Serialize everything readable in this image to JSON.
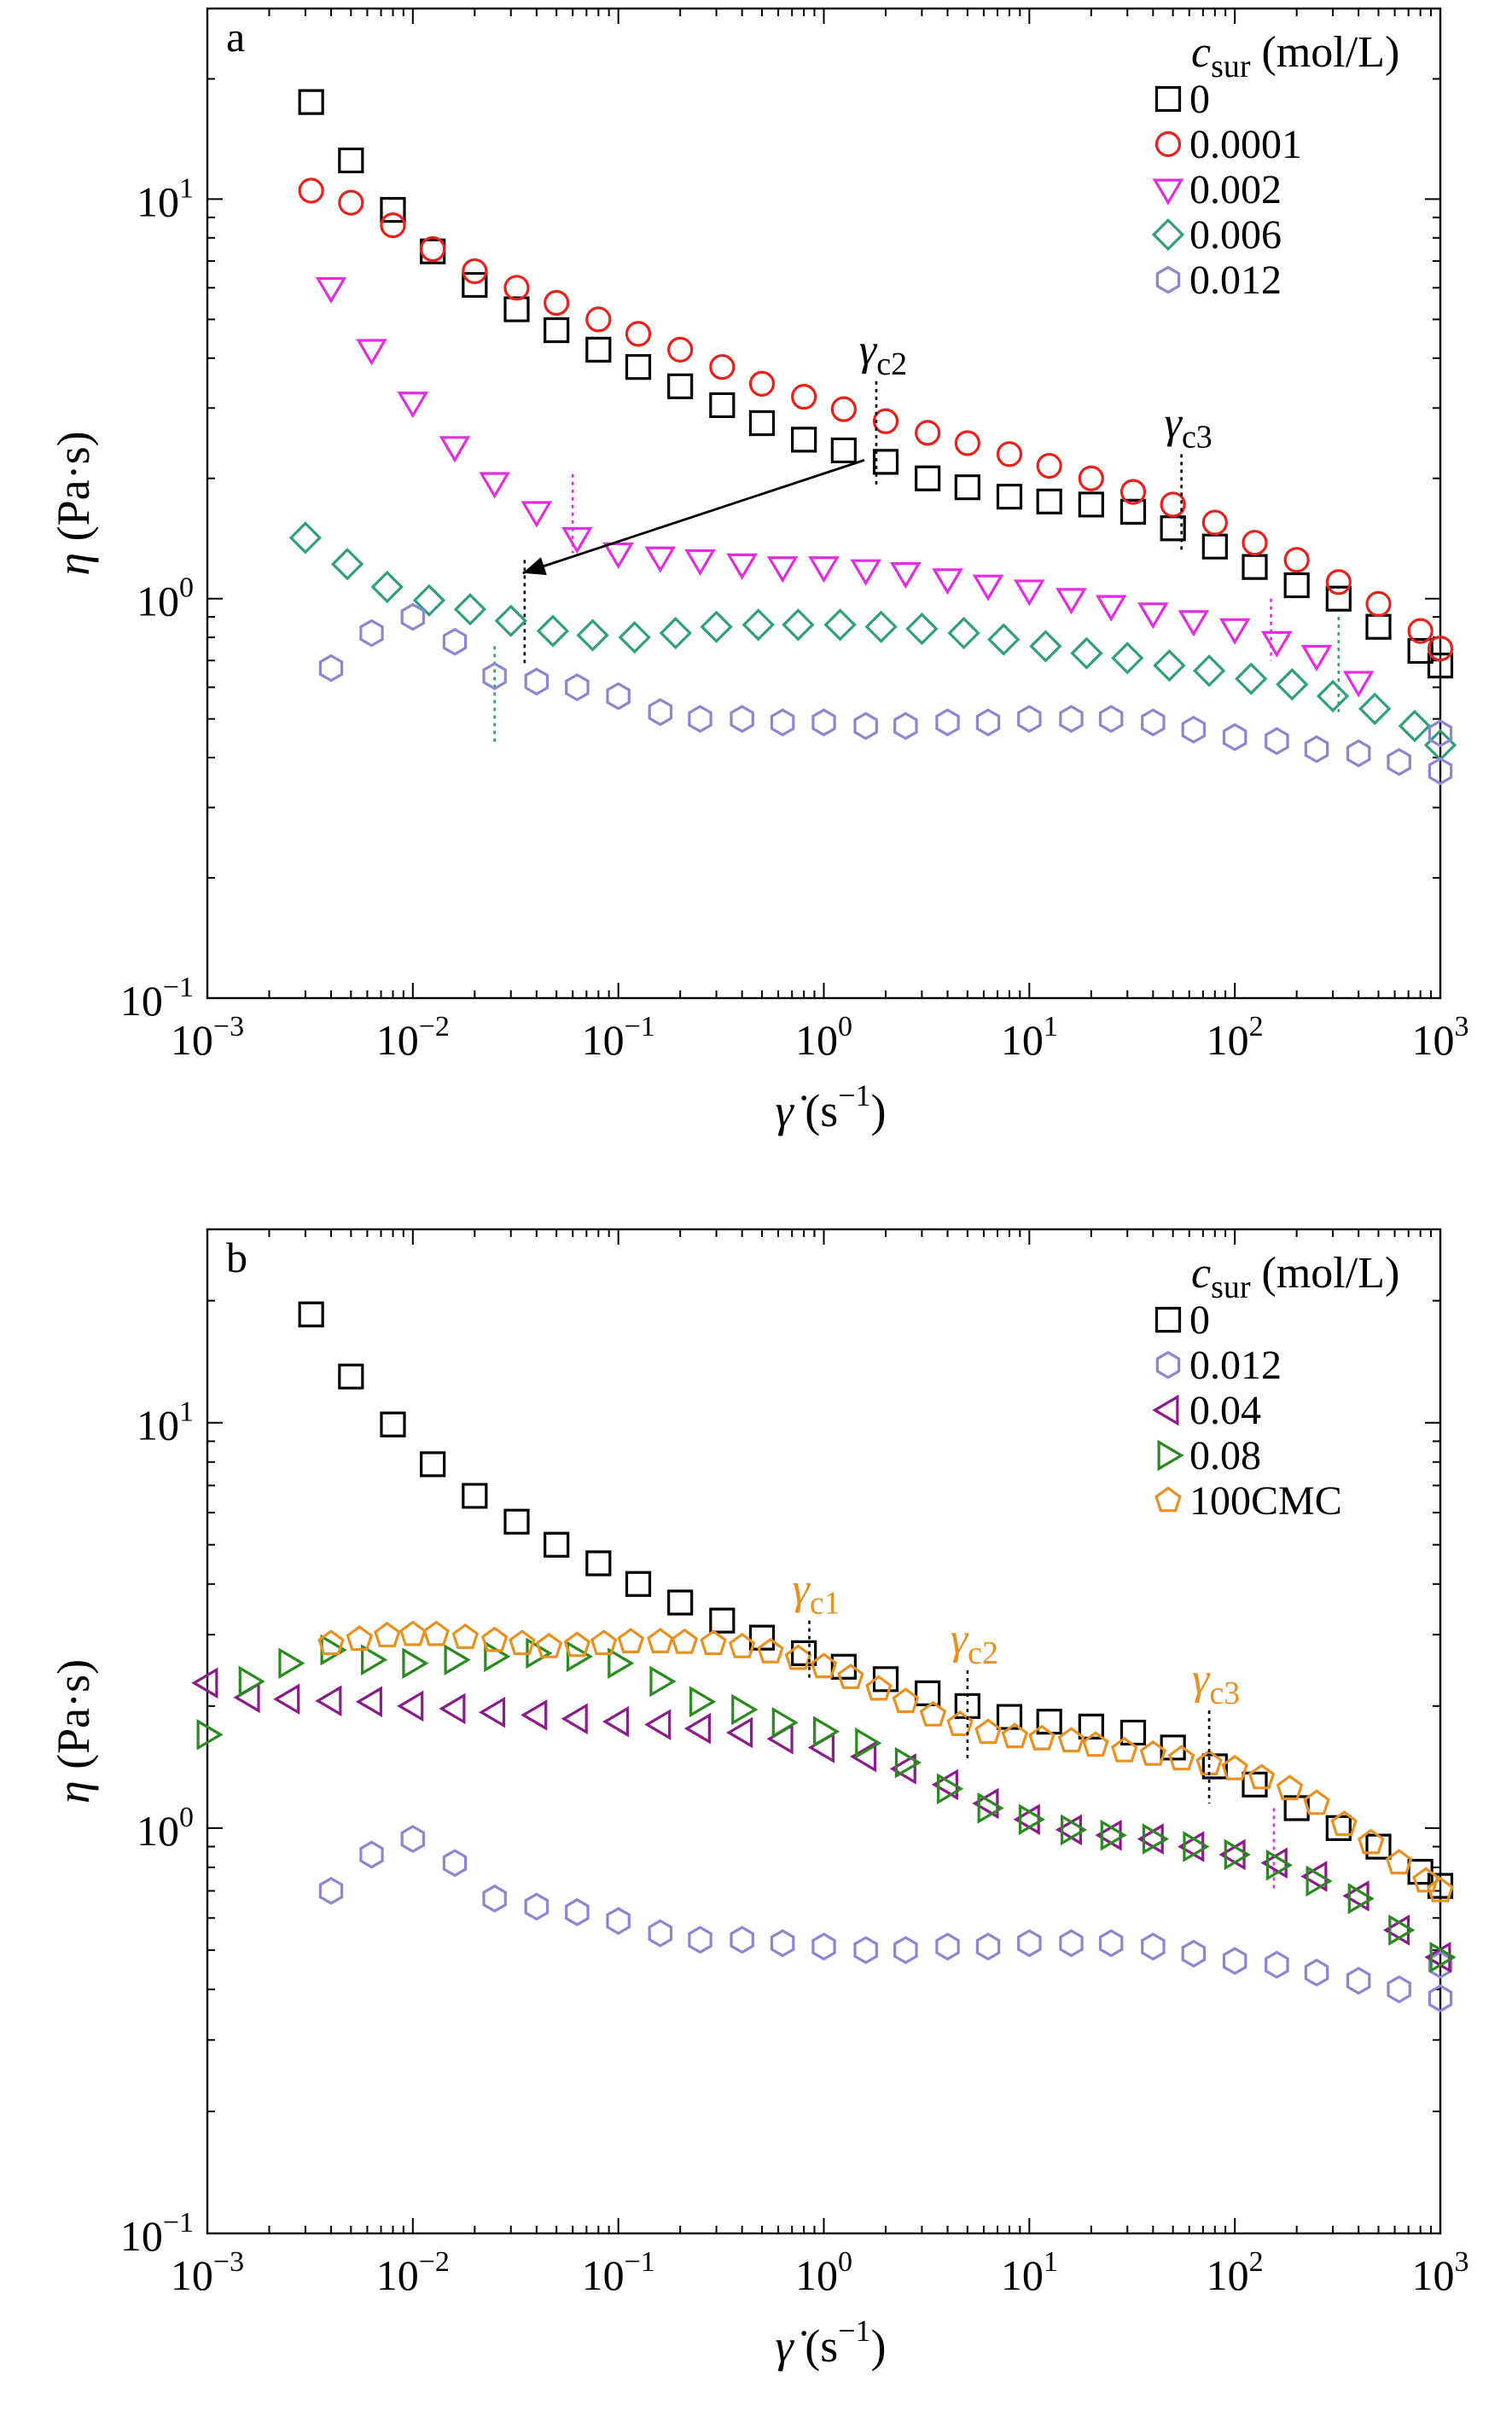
{
  "chart_data": [
    {
      "type": "scatter",
      "panel_label": "a",
      "xscale": "log",
      "yscale": "log",
      "xlim": [
        0.001,
        1000
      ],
      "ylim": [
        0.1,
        30
      ],
      "xticks": [
        0.001,
        0.01,
        0.1,
        1,
        10,
        100,
        1000
      ],
      "yticks": [
        0.1,
        1,
        10
      ],
      "xtick_labels": [
        {
          "base": "10",
          "exp": "−3"
        },
        {
          "base": "10",
          "exp": "−2"
        },
        {
          "base": "10",
          "exp": "−1"
        },
        {
          "base": "10",
          "exp": "0"
        },
        {
          "base": "10",
          "exp": "1"
        },
        {
          "base": "10",
          "exp": "2"
        },
        {
          "base": "10",
          "exp": "3"
        }
      ],
      "ytick_labels": [
        {
          "base": "10",
          "exp": "−1"
        },
        {
          "base": "10",
          "exp": "0"
        },
        {
          "base": "10",
          "exp": "1"
        }
      ],
      "xlabel": {
        "sym": "γ̇",
        "text": " (s",
        "exp": "−1",
        "close": ")"
      },
      "ylabel": {
        "sym": "η",
        "text": " (Pa·s)"
      },
      "legend": {
        "title_sym": "c",
        "title_sub": "sur",
        "title_text": " (mol/L)",
        "position": "top-right"
      },
      "series": [
        {
          "name": "0",
          "marker": "square",
          "color": "#000000",
          "x": [
            0.0032,
            0.005,
            0.008,
            0.0125,
            0.02,
            0.032,
            0.05,
            0.08,
            0.125,
            0.2,
            0.32,
            0.5,
            0.8,
            1.25,
            2,
            3.2,
            5,
            8,
            12.5,
            20,
            32,
            50,
            80,
            125,
            200,
            320,
            500,
            800,
            1000
          ],
          "y": [
            17.5,
            12.5,
            9.4,
            7.4,
            6.1,
            5.3,
            4.7,
            4.2,
            3.8,
            3.4,
            3.05,
            2.75,
            2.5,
            2.35,
            2.2,
            2.0,
            1.9,
            1.8,
            1.75,
            1.72,
            1.65,
            1.5,
            1.35,
            1.2,
            1.08,
            1.0,
            0.85,
            0.74,
            0.68
          ]
        },
        {
          "name": "0.0001",
          "marker": "circle",
          "color": "#e8211d",
          "x": [
            0.0032,
            0.005,
            0.008,
            0.0125,
            0.02,
            0.032,
            0.05,
            0.08,
            0.125,
            0.2,
            0.32,
            0.5,
            0.8,
            1.25,
            2,
            3.2,
            5,
            8,
            12.5,
            20,
            32,
            50,
            80,
            125,
            200,
            320,
            500,
            800,
            1000
          ],
          "y": [
            10.5,
            9.8,
            8.6,
            7.5,
            6.6,
            6.0,
            5.5,
            5.0,
            4.6,
            4.2,
            3.8,
            3.45,
            3.2,
            2.98,
            2.78,
            2.6,
            2.45,
            2.3,
            2.15,
            2.0,
            1.85,
            1.72,
            1.55,
            1.38,
            1.25,
            1.1,
            0.97,
            0.83,
            0.75
          ]
        },
        {
          "name": "0.002",
          "marker": "triangle-down",
          "color": "#e22ee0",
          "x": [
            0.004,
            0.0063,
            0.01,
            0.016,
            0.025,
            0.04,
            0.063,
            0.1,
            0.16,
            0.25,
            0.4,
            0.63,
            1,
            1.6,
            2.5,
            4,
            6.3,
            10,
            16,
            25,
            40,
            63,
            100,
            160,
            250,
            400
          ],
          "y": [
            6.0,
            4.2,
            3.1,
            2.4,
            1.95,
            1.65,
            1.42,
            1.3,
            1.27,
            1.25,
            1.22,
            1.2,
            1.2,
            1.18,
            1.16,
            1.12,
            1.08,
            1.05,
            1.0,
            0.96,
            0.92,
            0.88,
            0.84,
            0.78,
            0.72,
            0.62
          ]
        },
        {
          "name": "0.006",
          "marker": "diamond",
          "color": "#2f9f7c",
          "x": [
            0.003,
            0.0048,
            0.0075,
            0.012,
            0.019,
            0.03,
            0.048,
            0.075,
            0.12,
            0.19,
            0.3,
            0.48,
            0.75,
            1.2,
            1.9,
            3,
            4.8,
            7.5,
            12,
            19,
            30,
            48,
            75,
            120,
            190,
            300,
            480,
            750,
            1000
          ],
          "y": [
            1.42,
            1.22,
            1.07,
            0.99,
            0.94,
            0.88,
            0.83,
            0.81,
            0.8,
            0.82,
            0.85,
            0.86,
            0.86,
            0.86,
            0.85,
            0.84,
            0.82,
            0.79,
            0.76,
            0.73,
            0.71,
            0.68,
            0.66,
            0.63,
            0.61,
            0.57,
            0.53,
            0.48,
            0.43
          ]
        },
        {
          "name": "0.012",
          "marker": "hexagon",
          "color": "#8d86d2",
          "x": [
            0.004,
            0.0063,
            0.01,
            0.016,
            0.025,
            0.04,
            0.063,
            0.1,
            0.16,
            0.25,
            0.4,
            0.63,
            1,
            1.6,
            2.5,
            4,
            6.3,
            10,
            16,
            25,
            40,
            63,
            100,
            160,
            250,
            400,
            630,
            1000,
            1000
          ],
          "y": [
            0.67,
            0.82,
            0.9,
            0.78,
            0.64,
            0.62,
            0.6,
            0.57,
            0.52,
            0.5,
            0.5,
            0.49,
            0.49,
            0.48,
            0.48,
            0.49,
            0.49,
            0.5,
            0.5,
            0.5,
            0.49,
            0.47,
            0.45,
            0.44,
            0.42,
            0.41,
            0.39,
            0.37,
            0.46
          ]
        }
      ],
      "annotations": [
        {
          "label": "γc2",
          "sym": "γ",
          "sub": "c2",
          "color": "#000000",
          "x": 1.8,
          "y_top": 3.5,
          "y_bot": 1.9
        },
        {
          "label": "γc3",
          "sym": "γ",
          "sub": "c3",
          "color": "#000000",
          "x": 55,
          "y_top": 2.3,
          "y_bot": 1.3
        }
      ],
      "markers_dotted": [
        {
          "color": "#e22ee0",
          "x": 0.06,
          "y_top": 2.05,
          "y_bot": 1.3
        },
        {
          "color": "#000000",
          "x": 0.035,
          "y_top": 1.25,
          "y_bot": 0.68
        },
        {
          "color": "#2f9f7c",
          "x": 0.025,
          "y_top": 0.76,
          "y_bot": 0.43
        },
        {
          "color": "#e22ee0",
          "x": 150,
          "y_top": 1.0,
          "y_bot": 0.7
        },
        {
          "color": "#2f9f7c",
          "x": 320,
          "y_top": 0.9,
          "y_bot": 0.52
        }
      ],
      "arrow": {
        "from": [
          1.8,
          2.2
        ],
        "to": [
          0.033,
          1.17
        ],
        "color": "#000000"
      }
    },
    {
      "type": "scatter",
      "panel_label": "b",
      "xscale": "log",
      "yscale": "log",
      "xlim": [
        0.001,
        1000
      ],
      "ylim": [
        0.1,
        30
      ],
      "xticks": [
        0.001,
        0.01,
        0.1,
        1,
        10,
        100,
        1000
      ],
      "yticks": [
        0.1,
        1,
        10
      ],
      "xtick_labels": [
        {
          "base": "10",
          "exp": "−3"
        },
        {
          "base": "10",
          "exp": "−2"
        },
        {
          "base": "10",
          "exp": "−1"
        },
        {
          "base": "10",
          "exp": "0"
        },
        {
          "base": "10",
          "exp": "1"
        },
        {
          "base": "10",
          "exp": "2"
        },
        {
          "base": "10",
          "exp": "3"
        }
      ],
      "ytick_labels": [
        {
          "base": "10",
          "exp": "−1"
        },
        {
          "base": "10",
          "exp": "0"
        },
        {
          "base": "10",
          "exp": "1"
        }
      ],
      "xlabel": {
        "sym": "γ̇",
        "text": " (s",
        "exp": "−1",
        "close": ")"
      },
      "ylabel": {
        "sym": "η",
        "text": " (Pa·s)"
      },
      "legend": {
        "title_sym": "c",
        "title_sub": "sur",
        "title_text": " (mol/L)",
        "position": "top-right"
      },
      "series": [
        {
          "name": "0",
          "marker": "square",
          "color": "#000000",
          "x": [
            0.0032,
            0.005,
            0.008,
            0.0125,
            0.02,
            0.032,
            0.05,
            0.08,
            0.125,
            0.2,
            0.32,
            0.5,
            0.8,
            1.25,
            2,
            3.2,
            5,
            8,
            12.5,
            20,
            32,
            50,
            80,
            125,
            200,
            320,
            500,
            800,
            1000
          ],
          "y": [
            18.5,
            13.0,
            9.9,
            7.9,
            6.6,
            5.7,
            5.0,
            4.5,
            4.0,
            3.6,
            3.25,
            2.95,
            2.7,
            2.5,
            2.33,
            2.15,
            2.0,
            1.88,
            1.83,
            1.78,
            1.72,
            1.58,
            1.42,
            1.28,
            1.12,
            1.0,
            0.9,
            0.78,
            0.72
          ]
        },
        {
          "name": "0.012",
          "marker": "hexagon",
          "color": "#8d86d2",
          "x": [
            0.004,
            0.0063,
            0.01,
            0.016,
            0.025,
            0.04,
            0.063,
            0.1,
            0.16,
            0.25,
            0.4,
            0.63,
            1,
            1.6,
            2.5,
            4,
            6.3,
            10,
            16,
            25,
            40,
            63,
            100,
            160,
            250,
            400,
            630,
            1000,
            1000
          ],
          "y": [
            0.7,
            0.86,
            0.94,
            0.82,
            0.67,
            0.64,
            0.62,
            0.59,
            0.55,
            0.53,
            0.53,
            0.52,
            0.51,
            0.5,
            0.5,
            0.51,
            0.51,
            0.52,
            0.52,
            0.52,
            0.51,
            0.49,
            0.47,
            0.46,
            0.44,
            0.42,
            0.4,
            0.38,
            0.46
          ]
        },
        {
          "name": "0.04",
          "marker": "triangle-left",
          "color": "#8b1a8b",
          "x": [
            0.001,
            0.0016,
            0.0025,
            0.004,
            0.0063,
            0.01,
            0.016,
            0.025,
            0.04,
            0.063,
            0.1,
            0.16,
            0.25,
            0.4,
            0.63,
            1,
            1.6,
            2.5,
            4,
            6.3,
            10,
            16,
            25,
            40,
            63,
            100,
            160,
            250,
            400,
            630,
            1000
          ],
          "y": [
            2.28,
            2.1,
            2.08,
            2.06,
            2.05,
            2.0,
            1.97,
            1.93,
            1.9,
            1.86,
            1.83,
            1.8,
            1.76,
            1.72,
            1.66,
            1.58,
            1.5,
            1.4,
            1.28,
            1.15,
            1.05,
            0.99,
            0.96,
            0.94,
            0.9,
            0.86,
            0.82,
            0.76,
            0.68,
            0.56,
            0.48
          ]
        },
        {
          "name": "0.08",
          "marker": "triangle-right",
          "color": "#2a8a1f",
          "x": [
            0.001,
            0.0016,
            0.0025,
            0.004,
            0.0063,
            0.01,
            0.016,
            0.025,
            0.04,
            0.063,
            0.1,
            0.16,
            0.25,
            0.4,
            0.63,
            1,
            1.6,
            2.5,
            4,
            6.3,
            10,
            16,
            25,
            40,
            63,
            100,
            160,
            250,
            400,
            630,
            1000
          ],
          "y": [
            1.7,
            2.3,
            2.55,
            2.75,
            2.6,
            2.55,
            2.6,
            2.65,
            2.7,
            2.65,
            2.55,
            2.3,
            2.05,
            1.96,
            1.82,
            1.73,
            1.62,
            1.45,
            1.25,
            1.12,
            1.05,
            0.99,
            0.96,
            0.94,
            0.9,
            0.86,
            0.81,
            0.74,
            0.67,
            0.56,
            0.48
          ]
        },
        {
          "name": "100CMC",
          "marker": "pentagon",
          "color": "#e89020",
          "x": [
            0.004,
            0.0055,
            0.0075,
            0.01,
            0.013,
            0.018,
            0.025,
            0.034,
            0.046,
            0.063,
            0.085,
            0.115,
            0.16,
            0.21,
            0.29,
            0.4,
            0.55,
            0.75,
            1.0,
            1.35,
            1.85,
            2.5,
            3.4,
            4.6,
            6.3,
            8.5,
            11.5,
            16,
            21,
            29,
            40,
            55,
            75,
            100,
            135,
            185,
            250,
            340,
            460,
            630,
            850,
            1000
          ],
          "y": [
            2.85,
            2.92,
            2.98,
            3.0,
            3.0,
            2.95,
            2.9,
            2.85,
            2.8,
            2.82,
            2.85,
            2.88,
            2.88,
            2.87,
            2.85,
            2.8,
            2.72,
            2.62,
            2.5,
            2.35,
            2.2,
            2.05,
            1.9,
            1.8,
            1.72,
            1.68,
            1.66,
            1.64,
            1.6,
            1.55,
            1.52,
            1.48,
            1.44,
            1.4,
            1.33,
            1.25,
            1.15,
            1.02,
            0.92,
            0.82,
            0.74,
            0.7
          ]
        }
      ],
      "annotations": [
        {
          "label": "γc1",
          "sym": "γ",
          "sub": "c1",
          "color": "#e89020",
          "x": 0.85,
          "y_top": 3.25,
          "y_bot": 2.35
        },
        {
          "label": "γc2",
          "sym": "γ",
          "sub": "c2",
          "color": "#e89020",
          "x": 5,
          "y_top": 2.45,
          "y_bot": 1.45
        },
        {
          "label": "γc3",
          "sym": "γ",
          "sub": "c3",
          "color": "#e89020",
          "x": 75,
          "y_top": 1.95,
          "y_bot": 1.15
        }
      ],
      "markers_dotted": [
        {
          "color": "#e22ee0",
          "x": 155,
          "y_top": 1.12,
          "y_bot": 0.71
        }
      ]
    }
  ]
}
